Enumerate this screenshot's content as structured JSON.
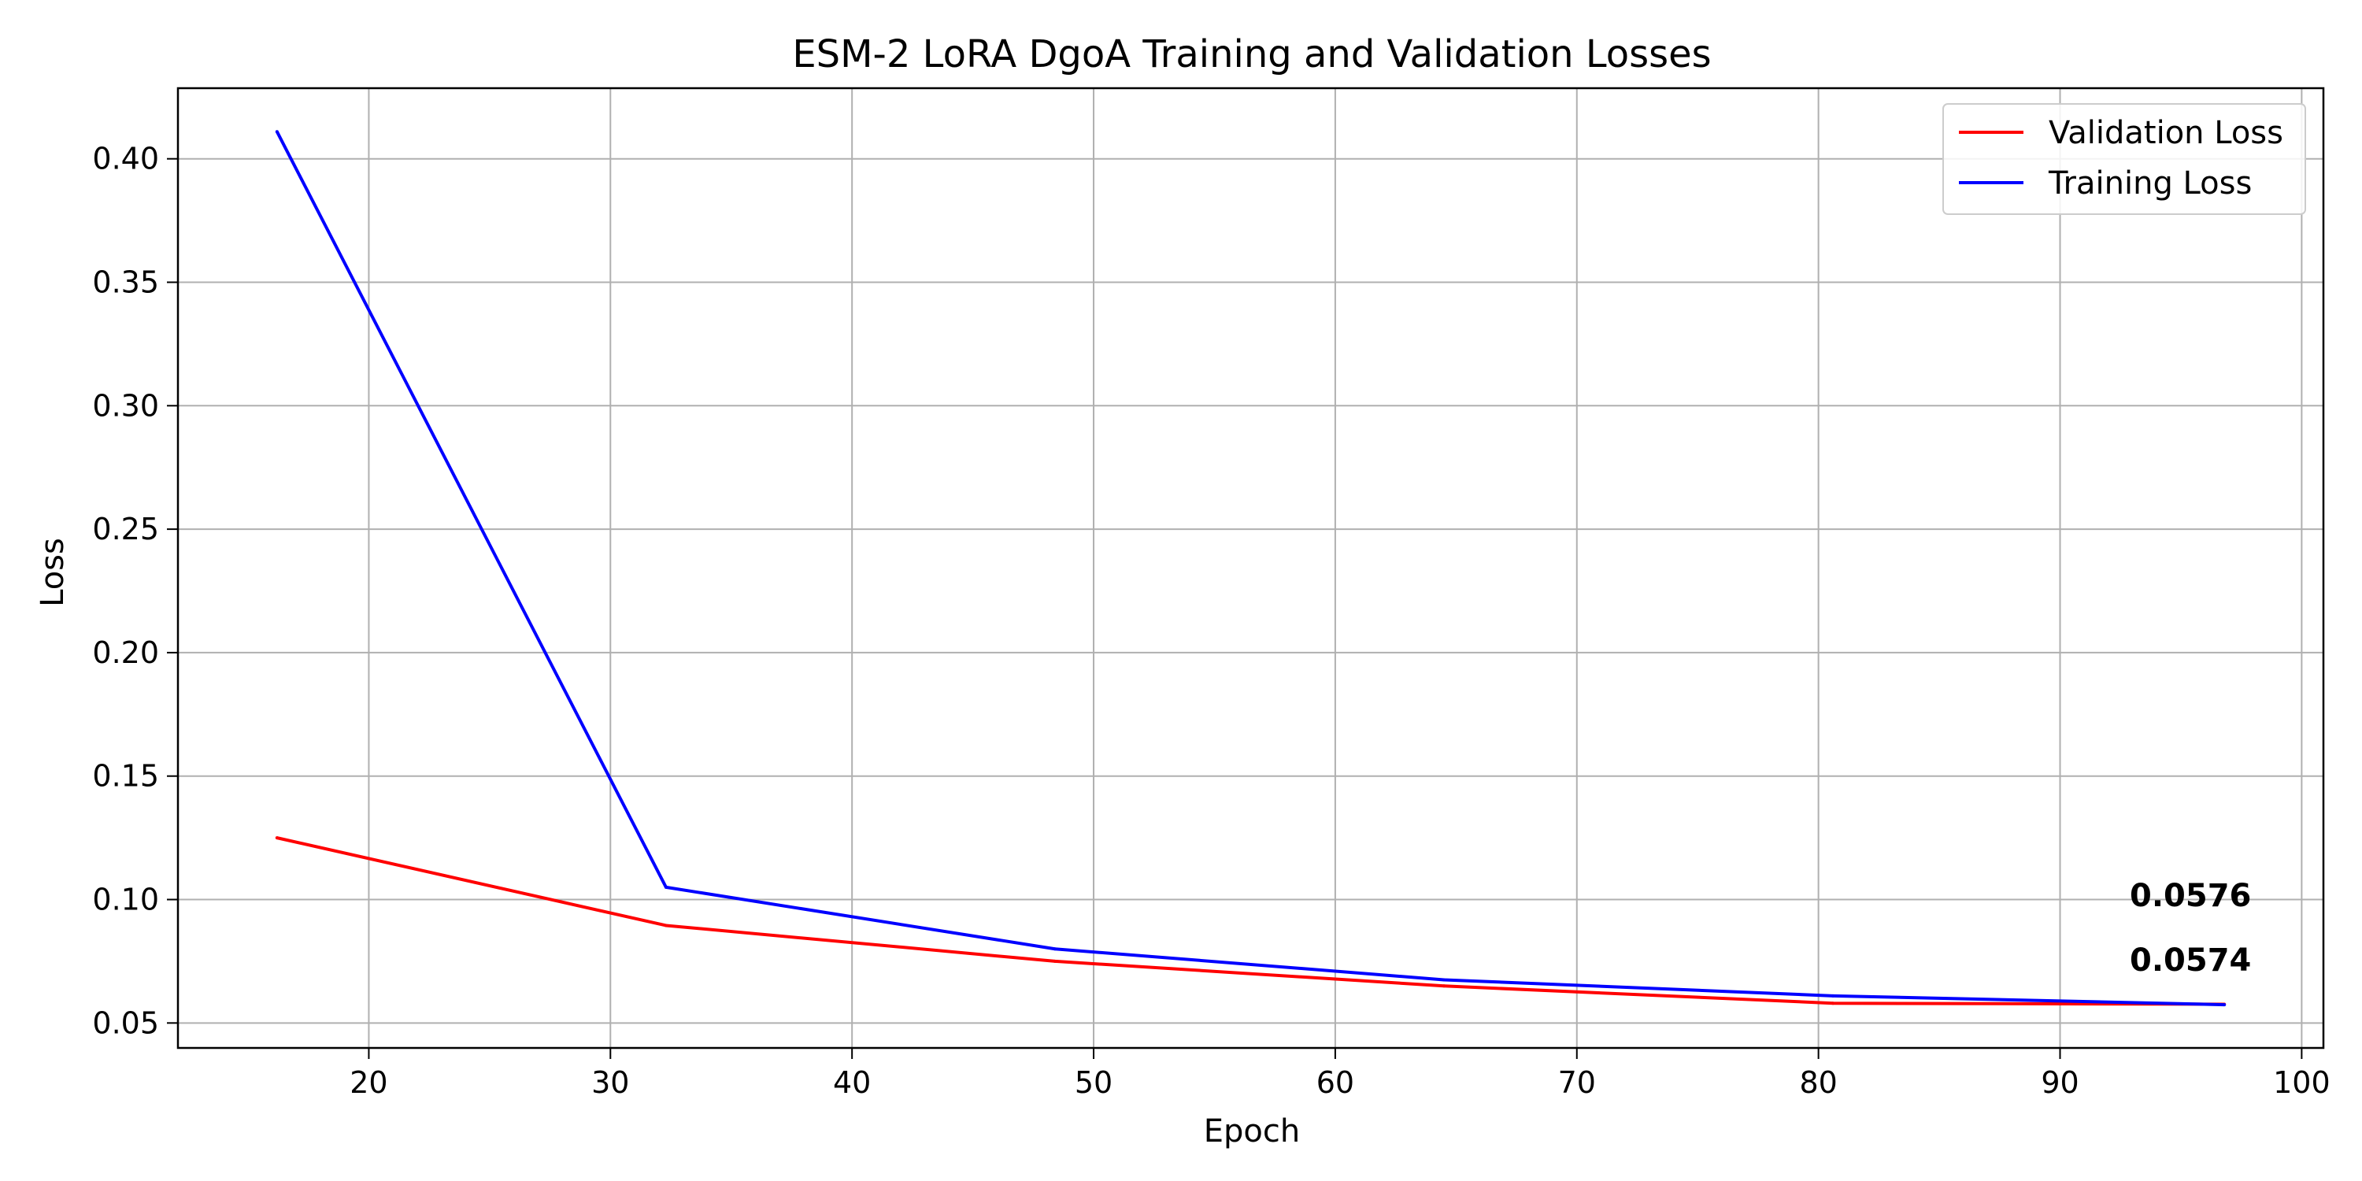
{
  "chart_data": {
    "type": "line",
    "title": "ESM-2 LoRA DgoA Training and Validation Losses",
    "xlabel": "Epoch",
    "ylabel": "Loss",
    "xlim": [
      12.1,
      100.9
    ],
    "ylim": [
      0.0399,
      0.4286
    ],
    "xticks": [
      20,
      30,
      40,
      50,
      60,
      70,
      80,
      90,
      100
    ],
    "yticks": [
      0.05,
      0.1,
      0.15,
      0.2,
      0.25,
      0.3,
      0.35,
      0.4
    ],
    "x_tick_labels": [
      "20",
      "30",
      "40",
      "50",
      "60",
      "70",
      "80",
      "90",
      "100"
    ],
    "y_tick_labels": [
      "0.05",
      "0.10",
      "0.15",
      "0.20",
      "0.25",
      "0.30",
      "0.35",
      "0.40"
    ],
    "grid": true,
    "legend_position": "top-right",
    "series": [
      {
        "name": "Validation Loss",
        "color": "#ff0000",
        "x": [
          16.2,
          32.3,
          48.4,
          64.5,
          80.6,
          96.8
        ],
        "values": [
          0.125,
          0.0895,
          0.075,
          0.065,
          0.058,
          0.0576
        ]
      },
      {
        "name": "Training Loss",
        "color": "#0000ff",
        "x": [
          16.2,
          32.3,
          48.4,
          64.5,
          80.6,
          96.8
        ],
        "values": [
          0.411,
          0.105,
          0.08,
          0.0675,
          0.061,
          0.0574
        ]
      }
    ],
    "end_labels": [
      {
        "text": "0.0576",
        "color": "#ff0000"
      },
      {
        "text": "0.0574",
        "color": "#0000ff"
      }
    ]
  }
}
